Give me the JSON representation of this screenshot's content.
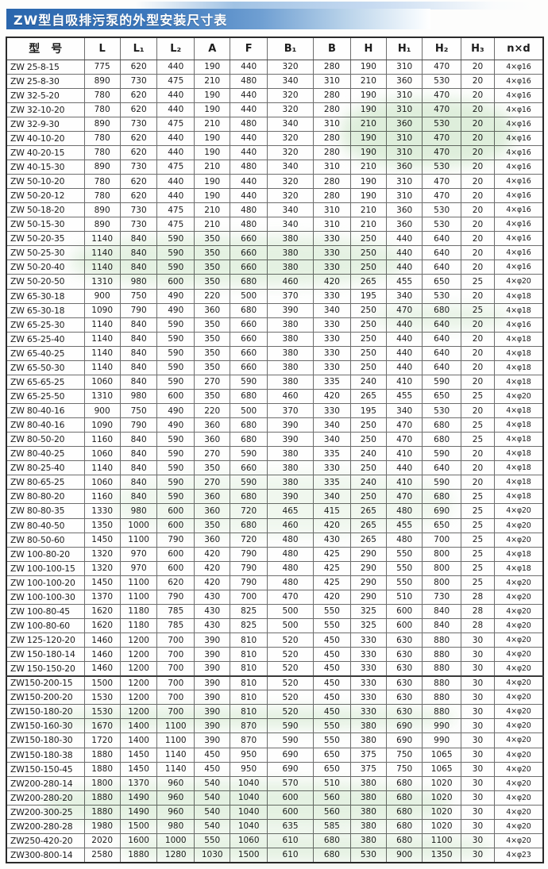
{
  "title": "ZW型自吸排污泵的外型安装尺寸表",
  "table": {
    "columns": [
      "型　号",
      "L",
      "L₁",
      "L₂",
      "A",
      "F",
      "B₁",
      "B",
      "H",
      "H₁",
      "H₂",
      "H₃",
      "n×d"
    ],
    "section_break_row": 43,
    "rows": [
      [
        "ZW 25-8-15",
        "775",
        "620",
        "440",
        "190",
        "440",
        "320",
        "280",
        "190",
        "310",
        "470",
        "20",
        "4×φ16"
      ],
      [
        "ZW 25-8-30",
        "890",
        "730",
        "475",
        "210",
        "480",
        "340",
        "310",
        "210",
        "360",
        "530",
        "20",
        "4×φ16"
      ],
      [
        "ZW 32-5-20",
        "780",
        "620",
        "440",
        "190",
        "440",
        "320",
        "280",
        "190",
        "310",
        "470",
        "20",
        "4×φ16"
      ],
      [
        "ZW 32-10-20",
        "780",
        "620",
        "440",
        "190",
        "440",
        "320",
        "280",
        "190",
        "310",
        "470",
        "20",
        "4×φ16"
      ],
      [
        "ZW 32-9-30",
        "890",
        "730",
        "475",
        "210",
        "480",
        "340",
        "310",
        "210",
        "360",
        "530",
        "20",
        "4×φ16"
      ],
      [
        "ZW 40-10-20",
        "780",
        "620",
        "440",
        "190",
        "440",
        "320",
        "280",
        "190",
        "310",
        "470",
        "20",
        "4×φ16"
      ],
      [
        "ZW 40-20-15",
        "780",
        "620",
        "440",
        "190",
        "440",
        "320",
        "280",
        "190",
        "310",
        "470",
        "20",
        "4×φ16"
      ],
      [
        "ZW 40-15-30",
        "890",
        "730",
        "475",
        "210",
        "480",
        "340",
        "310",
        "210",
        "360",
        "530",
        "20",
        "4×φ16"
      ],
      [
        "ZW 50-10-20",
        "780",
        "620",
        "440",
        "190",
        "440",
        "320",
        "280",
        "190",
        "310",
        "470",
        "20",
        "4×φ16"
      ],
      [
        "ZW 50-20-12",
        "780",
        "620",
        "440",
        "190",
        "440",
        "320",
        "280",
        "190",
        "310",
        "470",
        "20",
        "4×φ16"
      ],
      [
        "ZW 50-18-20",
        "890",
        "730",
        "475",
        "210",
        "480",
        "340",
        "310",
        "210",
        "360",
        "530",
        "20",
        "4×φ16"
      ],
      [
        "ZW 50-15-30",
        "890",
        "730",
        "475",
        "210",
        "480",
        "340",
        "310",
        "210",
        "360",
        "530",
        "20",
        "4×φ16"
      ],
      [
        "ZW 50-20-35",
        "1140",
        "840",
        "590",
        "350",
        "660",
        "380",
        "330",
        "250",
        "440",
        "640",
        "20",
        "4×φ16"
      ],
      [
        "ZW 50-25-30",
        "1140",
        "840",
        "590",
        "350",
        "660",
        "380",
        "330",
        "250",
        "440",
        "640",
        "20",
        "4×φ16"
      ],
      [
        "ZW 50-20-40",
        "1140",
        "840",
        "590",
        "350",
        "660",
        "380",
        "330",
        "250",
        "440",
        "640",
        "20",
        "4×φ16"
      ],
      [
        "ZW 50-20-50",
        "1310",
        "980",
        "600",
        "350",
        "680",
        "460",
        "420",
        "265",
        "455",
        "650",
        "25",
        "4×φ20"
      ],
      [
        "ZW 65-30-18",
        "900",
        "750",
        "490",
        "220",
        "500",
        "370",
        "330",
        "195",
        "340",
        "530",
        "20",
        "4×φ18"
      ],
      [
        "ZW 65-30-18",
        "1090",
        "790",
        "490",
        "360",
        "680",
        "390",
        "340",
        "250",
        "470",
        "680",
        "25",
        "4×φ18"
      ],
      [
        "ZW 65-25-30",
        "1140",
        "840",
        "590",
        "350",
        "660",
        "380",
        "330",
        "250",
        "440",
        "640",
        "20",
        "4×φ16"
      ],
      [
        "ZW 65-25-40",
        "1140",
        "840",
        "590",
        "350",
        "660",
        "380",
        "330",
        "250",
        "440",
        "640",
        "20",
        "4×φ18"
      ],
      [
        "ZW 65-40-25",
        "1140",
        "840",
        "590",
        "350",
        "660",
        "380",
        "330",
        "250",
        "440",
        "640",
        "20",
        "4×φ18"
      ],
      [
        "ZW 65-50-30",
        "1140",
        "840",
        "590",
        "350",
        "660",
        "380",
        "330",
        "250",
        "440",
        "640",
        "20",
        "4×φ18"
      ],
      [
        "ZW 65-65-25",
        "1060",
        "840",
        "590",
        "270",
        "590",
        "380",
        "335",
        "240",
        "410",
        "590",
        "20",
        "4×φ18"
      ],
      [
        "ZW 65-25-50",
        "1310",
        "980",
        "600",
        "350",
        "680",
        "460",
        "420",
        "265",
        "455",
        "650",
        "25",
        "4×φ20"
      ],
      [
        "ZW 80-40-16",
        "900",
        "750",
        "490",
        "220",
        "500",
        "370",
        "330",
        "195",
        "340",
        "530",
        "20",
        "4×φ18"
      ],
      [
        "ZW 80-40-16",
        "1090",
        "790",
        "490",
        "360",
        "680",
        "390",
        "340",
        "250",
        "470",
        "680",
        "25",
        "4×φ18"
      ],
      [
        "ZW 80-50-20",
        "1160",
        "840",
        "590",
        "360",
        "680",
        "390",
        "340",
        "250",
        "470",
        "680",
        "25",
        "4×φ18"
      ],
      [
        "ZW 80-40-25",
        "1060",
        "840",
        "590",
        "270",
        "590",
        "380",
        "335",
        "240",
        "410",
        "590",
        "20",
        "4×φ18"
      ],
      [
        "ZW 80-25-40",
        "1140",
        "840",
        "590",
        "350",
        "660",
        "380",
        "330",
        "250",
        "440",
        "640",
        "20",
        "4×φ18"
      ],
      [
        "ZW 80-65-25",
        "1060",
        "840",
        "590",
        "270",
        "590",
        "380",
        "335",
        "240",
        "410",
        "590",
        "20",
        "4×φ18"
      ],
      [
        "ZW 80-80-20",
        "1160",
        "840",
        "590",
        "360",
        "680",
        "390",
        "340",
        "250",
        "470",
        "680",
        "25",
        "4×φ18"
      ],
      [
        "ZW 80-80-35",
        "1330",
        "980",
        "600",
        "360",
        "720",
        "465",
        "415",
        "265",
        "480",
        "690",
        "25",
        "4×φ20"
      ],
      [
        "ZW 80-40-50",
        "1350",
        "1000",
        "600",
        "350",
        "680",
        "460",
        "420",
        "265",
        "455",
        "650",
        "25",
        "4×φ20"
      ],
      [
        "ZW 80-50-60",
        "1450",
        "1100",
        "790",
        "360",
        "720",
        "480",
        "430",
        "265",
        "480",
        "700",
        "25",
        "4×φ20"
      ],
      [
        "ZW 100-80-20",
        "1320",
        "970",
        "600",
        "420",
        "790",
        "480",
        "425",
        "290",
        "550",
        "800",
        "25",
        "4×φ18"
      ],
      [
        "ZW 100-100-15",
        "1320",
        "970",
        "600",
        "420",
        "790",
        "480",
        "425",
        "290",
        "550",
        "800",
        "25",
        "4×φ18"
      ],
      [
        "ZW 100-100-20",
        "1450",
        "1100",
        "620",
        "420",
        "790",
        "480",
        "425",
        "290",
        "550",
        "800",
        "25",
        "4×φ20"
      ],
      [
        "ZW 100-100-30",
        "1370",
        "1100",
        "790",
        "430",
        "700",
        "470",
        "420",
        "290",
        "510",
        "730",
        "28",
        "4×φ20"
      ],
      [
        "ZW 100-80-45",
        "1620",
        "1180",
        "785",
        "430",
        "825",
        "500",
        "550",
        "325",
        "600",
        "840",
        "28",
        "4×φ20"
      ],
      [
        "ZW 100-80-60",
        "1620",
        "1180",
        "785",
        "430",
        "825",
        "500",
        "550",
        "325",
        "600",
        "840",
        "28",
        "4×φ20"
      ],
      [
        "ZW 125-120-20",
        "1460",
        "1200",
        "700",
        "390",
        "810",
        "520",
        "450",
        "330",
        "630",
        "880",
        "30",
        "4×φ20"
      ],
      [
        "ZW 150-180-14",
        "1460",
        "1200",
        "700",
        "390",
        "810",
        "520",
        "450",
        "330",
        "630",
        "880",
        "30",
        "4×φ20"
      ],
      [
        "ZW 150-150-20",
        "1460",
        "1200",
        "700",
        "390",
        "810",
        "520",
        "450",
        "330",
        "630",
        "880",
        "30",
        "4×φ20"
      ],
      [
        "ZW150-200-15",
        "1500",
        "1200",
        "700",
        "390",
        "810",
        "520",
        "450",
        "330",
        "630",
        "880",
        "30",
        "4×φ20"
      ],
      [
        "ZW150-200-20",
        "1530",
        "1200",
        "700",
        "390",
        "810",
        "520",
        "450",
        "330",
        "630",
        "880",
        "30",
        "4×φ20"
      ],
      [
        "ZW150-180-20",
        "1530",
        "1200",
        "700",
        "390",
        "810",
        "520",
        "450",
        "330",
        "630",
        "880",
        "30",
        "4×φ20"
      ],
      [
        "ZW150-160-30",
        "1670",
        "1400",
        "1100",
        "390",
        "870",
        "590",
        "550",
        "380",
        "690",
        "990",
        "30",
        "4×φ20"
      ],
      [
        "ZW150-180-30",
        "1720",
        "1400",
        "1100",
        "390",
        "870",
        "590",
        "550",
        "380",
        "690",
        "990",
        "30",
        "4×φ20"
      ],
      [
        "ZW150-180-38",
        "1880",
        "1450",
        "1140",
        "450",
        "950",
        "690",
        "650",
        "375",
        "750",
        "1065",
        "30",
        "4×φ20"
      ],
      [
        "ZW150-150-45",
        "1880",
        "1450",
        "1140",
        "450",
        "950",
        "690",
        "650",
        "375",
        "750",
        "1065",
        "30",
        "4×φ20"
      ],
      [
        "ZW200-280-14",
        "1800",
        "1370",
        "960",
        "540",
        "1040",
        "570",
        "510",
        "380",
        "680",
        "1020",
        "30",
        "4×φ20"
      ],
      [
        "ZW200-280-20",
        "1880",
        "1490",
        "960",
        "540",
        "1040",
        "600",
        "560",
        "380",
        "680",
        "1020",
        "30",
        "4×φ20"
      ],
      [
        "ZW200-300-25",
        "1880",
        "1490",
        "960",
        "540",
        "1040",
        "600",
        "560",
        "380",
        "680",
        "1020",
        "30",
        "4×φ20"
      ],
      [
        "ZW200-280-28",
        "1980",
        "1500",
        "980",
        "540",
        "1040",
        "635",
        "585",
        "380",
        "680",
        "1020",
        "30",
        "4×φ20"
      ],
      [
        "ZW250-420-20",
        "2020",
        "1600",
        "1000",
        "550",
        "1060",
        "610",
        "680",
        "380",
        "680",
        "1100",
        "30",
        "4×φ20"
      ],
      [
        "ZW300-800-14",
        "2580",
        "1880",
        "1280",
        "1030",
        "1500",
        "610",
        "680",
        "530",
        "900",
        "1350",
        "30",
        "4×φ23"
      ]
    ]
  }
}
